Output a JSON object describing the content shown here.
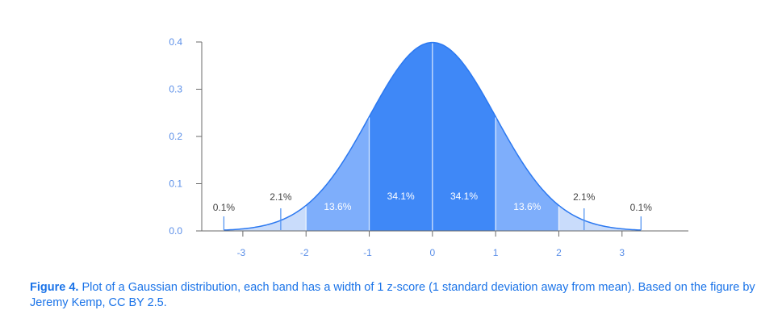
{
  "chart_data": {
    "type": "area",
    "title": "",
    "xlabel": "",
    "ylabel": "",
    "xlim": [
      -3.65,
      4.05
    ],
    "ylim": [
      0,
      0.4
    ],
    "curve": {
      "function": "standard normal pdf",
      "mean": 0,
      "sd": 1,
      "x_range": [
        -3.3,
        3.3
      ]
    },
    "yticks": [
      "0.0",
      "0.1",
      "0.2",
      "0.3",
      "0.4"
    ],
    "xticks": [
      "-3",
      "-2",
      "-1",
      "0",
      "1",
      "2",
      "3"
    ],
    "bands": [
      {
        "from": -3.3,
        "to": -2,
        "label": "",
        "color": "#c9dcfb"
      },
      {
        "from": -2,
        "to": -1,
        "label": "13.6%",
        "color": "#7eaefb"
      },
      {
        "from": -1,
        "to": 0,
        "label": "34.1%",
        "color": "#3f88f7"
      },
      {
        "from": 0,
        "to": 1,
        "label": "34.1%",
        "color": "#3f88f7"
      },
      {
        "from": 1,
        "to": 2,
        "label": "13.6%",
        "color": "#7eaefb"
      },
      {
        "from": 2,
        "to": 3.3,
        "label": "",
        "color": "#c9dcfb"
      }
    ],
    "tail_annotations": [
      {
        "x": -2.4,
        "label": "2.1%"
      },
      {
        "x": -3.3,
        "label": "0.1%"
      },
      {
        "x": 2.4,
        "label": "2.1%"
      },
      {
        "x": 3.3,
        "label": "0.1%"
      }
    ],
    "grid": false,
    "colors": {
      "axis": "#6b6b6b",
      "tick_text": "#5b8fe8",
      "outline": "#2b78f0",
      "marker": "#4a8ef0"
    }
  },
  "caption": {
    "label": "Figure 4.",
    "text": " Plot of a Gaussian distribution, each band has a width of 1 z-score (1 standard deviation away from mean). Based on the figure by Jeremy Kemp, CC BY 2.5."
  }
}
